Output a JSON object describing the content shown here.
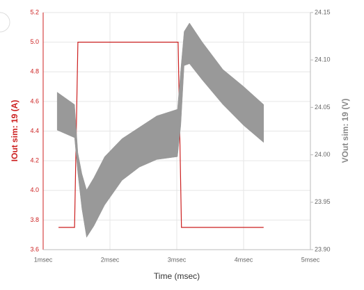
{
  "chart_data": {
    "type": "line",
    "x_label": "Time (msec)",
    "y_label": "IOut sim: 19 (A)",
    "y2_label": "VOut sim: 19 (V)",
    "xlim": [
      1,
      5
    ],
    "xticks": [
      {
        "value": 1,
        "label": "1msec"
      },
      {
        "value": 2,
        "label": "2msec"
      },
      {
        "value": 3,
        "label": "3msec"
      },
      {
        "value": 4,
        "label": "4msec"
      },
      {
        "value": 5,
        "label": "5msec"
      }
    ],
    "ylim": [
      3.6,
      5.2
    ],
    "yticks": [
      3.6,
      3.8,
      {
        "value": 4.0,
        "label": "4.0"
      },
      4.2,
      4.4,
      4.6,
      4.8,
      {
        "value": 5.0,
        "label": "5.0"
      },
      5.2
    ],
    "y2lim": [
      23.9,
      24.15
    ],
    "y2ticks": [
      {
        "value": 23.9,
        "label": "23.90"
      },
      23.95,
      {
        "value": 24.0,
        "label": "24.00"
      },
      24.05,
      {
        "value": 24.1,
        "label": "24.10"
      },
      24.15
    ],
    "grid": true,
    "series": [
      {
        "color": "#cc1f1f",
        "x": [
          1.23,
          1.47,
          1.52,
          3.02,
          3.07,
          4.3
        ],
        "values": [
          3.75,
          3.75,
          5.0,
          5.0,
          3.75,
          3.75
        ]
      },
      {
        "color": "#999999",
        "axis": "y2",
        "x": [
          1.21,
          1.47,
          1.52,
          1.58,
          1.65,
          1.76,
          1.92,
          2.18,
          2.44,
          2.7,
          3.01,
          3.06,
          3.11,
          3.19,
          3.38,
          3.69,
          4.0,
          4.3
        ],
        "upper": [
          24.066,
          24.053,
          24.002,
          23.98,
          23.963,
          23.976,
          23.998,
          24.017,
          24.029,
          24.041,
          24.048,
          24.09,
          24.13,
          24.139,
          24.119,
          24.09,
          24.072,
          24.053
        ],
        "lower": [
          24.026,
          24.018,
          23.98,
          23.943,
          23.913,
          23.925,
          23.947,
          23.973,
          23.987,
          23.995,
          23.998,
          24.031,
          24.094,
          24.096,
          24.079,
          24.053,
          24.031,
          24.013
        ]
      }
    ]
  }
}
